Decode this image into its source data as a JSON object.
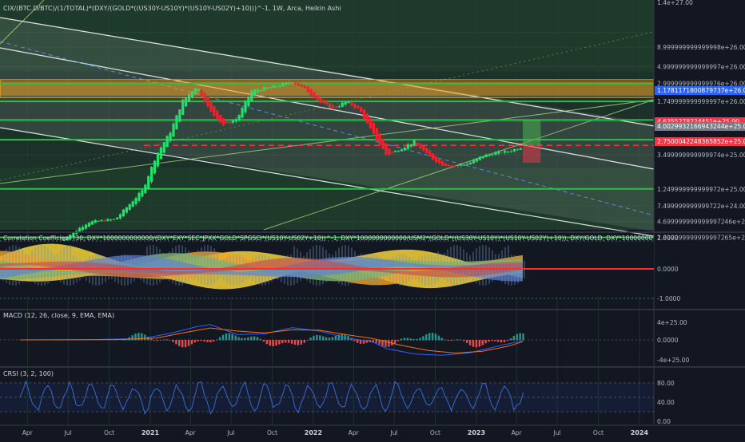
{
  "main": {
    "legend": "CIX/(BTC.D/BTC)/(1/TOTAL)*(DXY/(GOLD*((US30Y-US10Y)*(US10Y-US02Y)+10)))^-1, 1W, Arca, Heikin Ashi",
    "price_ticks": [
      "1.4e+27.00",
      "8.999999999999998e+26.00",
      "4.999999999999997e+26.00",
      "2.999999999999976e+26.00",
      "1.749999999999997e+26.00",
      "9.499999999999997e+25.00",
      "5.499999999999997e+25.00",
      "3.499999999999974e+25.00",
      "1.249999999999972e+25.00",
      "7.499999999999722e+24.00",
      "4.699999999999997246e+24.00",
      "2.899999999999997265e+24.00"
    ],
    "price_labels": {
      "blue": "1.1781171800879737e+26.00",
      "red_dashed": "4.6355278224451e+25.00",
      "current": "4.0029932166943244e+25.00",
      "red": "2.7500042248365852e+25.00"
    },
    "colors": {
      "up": "#22e06a",
      "down": "#f0222e",
      "zone": "#f5a623",
      "green_line": "#2ebd4b",
      "channel": "#ffffff",
      "blue_label": "#2962ff",
      "red_label": "#f23645",
      "current_label": "#787b86",
      "bg": "#131722",
      "grid": "#262a36"
    }
  },
  "corr": {
    "legend": "Correlation Coefficient (30, DXY*1000000000000/(DXY*EXY*SEC*JPXX*GOLD*SPGSCI*(US10Y-US02Y+10))^-1, DXY*1000000000000/USM2*(GOLD*((US30Y-US10Y)*(US10Y-US02Y)+10)), DXY/GOLD, DXY*1000000000000/USM2*((US30Y-US10Y)*(U",
    "ticks": [
      "1.0000",
      "0.0000",
      "-1.0000"
    ]
  },
  "macd": {
    "legend": "MACD (12, 26, close, 9, EMA, EMA)",
    "ticks": [
      "4e+25.00",
      "0.0000",
      "-4e+25.00"
    ]
  },
  "crsi": {
    "legend": "CRSI (3, 2, 100)",
    "ticks": [
      "80.00",
      "40.00",
      "0.00"
    ]
  },
  "time_axis": [
    "Apr",
    "Jul",
    "Oct",
    "2021",
    "Apr",
    "Jul",
    "Oct",
    "2022",
    "Apr",
    "Jul",
    "Oct",
    "2023",
    "Apr",
    "Jul",
    "Oct",
    "2024"
  ],
  "chart_data": {
    "type": "candlestick",
    "title": "CIX/(BTC.D/BTC)/(1/TOTAL)*(DXY/(GOLD*((US30Y-US10Y)*(US10Y-US02Y)+10)))^-1, 1W, Arca, Heikin Ashi",
    "yscale": "log",
    "ylim": [
      2.6e+24,
      1.4e+27
    ],
    "x_labels": [
      "Apr",
      "Jul",
      "Oct",
      "2021",
      "Apr",
      "Jul",
      "Oct",
      "2022",
      "Apr",
      "Jul",
      "Oct",
      "2023",
      "Apr",
      "Jul",
      "Oct",
      "2024"
    ],
    "close_path": [
      [
        "2020-06",
        2.6e+24
      ],
      [
        "2020-08",
        4.6e+24
      ],
      [
        "2020-10",
        5e+24
      ],
      [
        "2020-12",
        1.2e+25
      ],
      [
        "2021-01",
        3.5e+25
      ],
      [
        "2021-02",
        7e+25
      ],
      [
        "2021-03",
        1.8e+26
      ],
      [
        "2021-04",
        2.8e+26
      ],
      [
        "2021-05",
        1.3e+26
      ],
      [
        "2021-06",
        8.5e+25
      ],
      [
        "2021-07",
        1.05e+26
      ],
      [
        "2021-08",
        2.4e+26
      ],
      [
        "2021-10",
        2.8e+26
      ],
      [
        "2021-11",
        3.2e+26
      ],
      [
        "2021-12",
        2.5e+26
      ],
      [
        "2022-01",
        1.7e+26
      ],
      [
        "2022-02",
        1.4e+26
      ],
      [
        "2022-03",
        1.75e+26
      ],
      [
        "2022-04",
        1.35e+26
      ],
      [
        "2022-05",
        6.5e+25
      ],
      [
        "2022-06",
        3.4e+25
      ],
      [
        "2022-07",
        4.2e+25
      ],
      [
        "2022-08",
        5.2e+25
      ],
      [
        "2022-09",
        3.4e+25
      ],
      [
        "2022-10",
        2.6e+25
      ],
      [
        "2022-11",
        2.5e+25
      ],
      [
        "2022-12",
        2.7e+25
      ],
      [
        "2023-01",
        3.4e+25
      ],
      [
        "2023-02",
        3.7e+25
      ],
      [
        "2023-03",
        3.9e+25
      ],
      [
        "2023-04",
        4.5e+25
      ]
    ],
    "horizontal_levels": [
      2.99e+26,
      1.75e+26,
      1e+26,
      5.5e+25,
      4.64e+25,
      1.25e+25,
      2.9e+24
    ],
    "position_tool": {
      "entry": 4.64e+25,
      "target": 1e+26,
      "stop": 2.75e+25
    },
    "correlation": {
      "ylim": [
        -1,
        1
      ],
      "zero_line": 0
    },
    "macd": {
      "params": [
        12,
        26,
        "close",
        9,
        "EMA",
        "EMA"
      ],
      "ylim": [
        -4e+25,
        4e+25
      ],
      "macd_peak": 3.5e+25,
      "signal_peak": 2.7e+25,
      "trough": -3.5e+25
    },
    "crsi": {
      "params": [
        3,
        2,
        100
      ],
      "ylim": [
        0,
        100
      ],
      "band": [
        20,
        80
      ],
      "mid": 50
    }
  }
}
